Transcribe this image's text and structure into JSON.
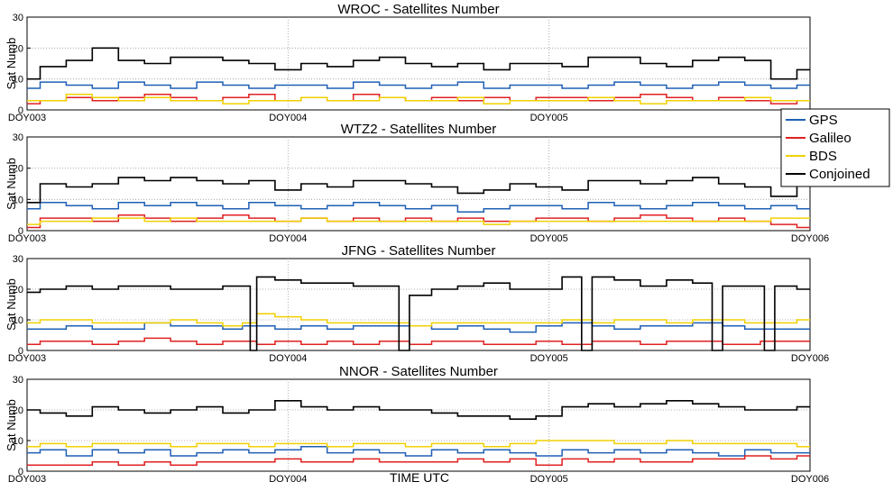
{
  "figure": {
    "xlabel": "TIME UTC",
    "legend": {
      "placement": "right",
      "entries": [
        {
          "name": "GPS",
          "color": "#1f5fb5"
        },
        {
          "name": "Galileo",
          "color": "#e02020"
        },
        {
          "name": "BDS",
          "color": "#f0d000"
        },
        {
          "name": "Conjoined",
          "color": "#000000"
        }
      ]
    }
  },
  "chart_data": [
    {
      "type": "line",
      "title": "WROC - Satellites Number",
      "ylabel": "Sat Numb",
      "xlabel": "",
      "x_ticks": [
        "DOY003",
        "DOY004",
        "DOY005"
      ],
      "xlim": [
        3,
        6
      ],
      "ylim": [
        0,
        30
      ],
      "yticks": [
        0,
        10,
        20,
        30
      ],
      "grid": true,
      "x": [
        3.0,
        3.1,
        3.2,
        3.3,
        3.4,
        3.5,
        3.6,
        3.7,
        3.8,
        3.9,
        4.0,
        4.1,
        4.2,
        4.3,
        4.4,
        4.5,
        4.6,
        4.7,
        4.8,
        4.9,
        5.0,
        5.1,
        5.2,
        5.3,
        5.4,
        5.5,
        5.6,
        5.7,
        5.8,
        5.9,
        6.0
      ],
      "series": [
        {
          "name": "GPS",
          "values": [
            7,
            9,
            8,
            7,
            9,
            8,
            7,
            9,
            8,
            7,
            8,
            8,
            7,
            9,
            8,
            7,
            8,
            9,
            7,
            8,
            8,
            7,
            8,
            9,
            8,
            7,
            8,
            9,
            8,
            7,
            8
          ]
        },
        {
          "name": "Galileo",
          "values": [
            2,
            3,
            4,
            3,
            4,
            5,
            4,
            3,
            4,
            5,
            3,
            4,
            3,
            5,
            4,
            3,
            4,
            3,
            4,
            3,
            4,
            4,
            3,
            4,
            5,
            4,
            3,
            4,
            3,
            2,
            3
          ]
        },
        {
          "name": "BDS",
          "values": [
            3,
            3,
            5,
            4,
            3,
            4,
            3,
            3,
            2,
            3,
            3,
            4,
            3,
            3,
            4,
            3,
            3,
            4,
            2,
            3,
            3,
            3,
            4,
            3,
            2,
            3,
            3,
            3,
            4,
            3,
            3
          ]
        },
        {
          "name": "Conjoined",
          "values": [
            10,
            14,
            16,
            20,
            16,
            15,
            17,
            17,
            16,
            15,
            13,
            15,
            14,
            16,
            17,
            15,
            14,
            15,
            13,
            15,
            15,
            14,
            17,
            17,
            15,
            14,
            16,
            17,
            16,
            10,
            13
          ]
        }
      ]
    },
    {
      "type": "line",
      "title": "WTZ2 - Satellites Number",
      "ylabel": "Sat Numb",
      "xlabel": "",
      "x_ticks": [
        "DOY003",
        "DOY004",
        "DOY005",
        "DOY006"
      ],
      "xlim": [
        3,
        6
      ],
      "ylim": [
        0,
        30
      ],
      "yticks": [
        0,
        10,
        20,
        30
      ],
      "grid": true,
      "x": [
        3.0,
        3.1,
        3.2,
        3.3,
        3.4,
        3.5,
        3.6,
        3.7,
        3.8,
        3.9,
        4.0,
        4.1,
        4.2,
        4.3,
        4.4,
        4.5,
        4.6,
        4.7,
        4.8,
        4.9,
        5.0,
        5.1,
        5.2,
        5.3,
        5.4,
        5.5,
        5.6,
        5.7,
        5.8,
        5.9,
        6.0
      ],
      "series": [
        {
          "name": "GPS",
          "values": [
            7,
            9,
            8,
            7,
            9,
            8,
            9,
            8,
            7,
            9,
            8,
            7,
            8,
            9,
            8,
            7,
            8,
            6,
            7,
            8,
            8,
            7,
            9,
            8,
            7,
            8,
            9,
            8,
            7,
            8,
            7
          ]
        },
        {
          "name": "Galileo",
          "values": [
            1,
            4,
            4,
            3,
            5,
            4,
            3,
            4,
            5,
            4,
            3,
            4,
            3,
            4,
            3,
            4,
            3,
            4,
            3,
            3,
            4,
            4,
            3,
            4,
            5,
            4,
            3,
            4,
            3,
            2,
            1
          ]
        },
        {
          "name": "BDS",
          "values": [
            2,
            3,
            3,
            4,
            4,
            3,
            4,
            3,
            3,
            3,
            3,
            4,
            3,
            3,
            3,
            3,
            3,
            3,
            2,
            3,
            3,
            3,
            3,
            3,
            3,
            3,
            3,
            3,
            3,
            4,
            4
          ]
        },
        {
          "name": "Conjoined",
          "values": [
            9,
            15,
            14,
            15,
            17,
            16,
            17,
            16,
            15,
            16,
            13,
            15,
            14,
            16,
            16,
            15,
            14,
            12,
            13,
            15,
            14,
            13,
            16,
            16,
            15,
            16,
            17,
            15,
            14,
            11,
            15
          ]
        }
      ]
    },
    {
      "type": "line",
      "title": "JFNG - Satellites Number",
      "ylabel": "Sat Numb",
      "xlabel": "",
      "x_ticks": [
        "DOY003",
        "DOY004",
        "DOY005",
        "DOY006"
      ],
      "xlim": [
        3,
        6
      ],
      "ylim": [
        0,
        30
      ],
      "yticks": [
        0,
        10,
        20,
        30
      ],
      "grid": true,
      "x": [
        3.0,
        3.1,
        3.2,
        3.3,
        3.4,
        3.5,
        3.6,
        3.7,
        3.8,
        3.85,
        3.86,
        3.9,
        4.0,
        4.1,
        4.2,
        4.3,
        4.4,
        4.42,
        4.43,
        4.5,
        4.6,
        4.7,
        4.8,
        4.9,
        5.0,
        5.1,
        5.12,
        5.13,
        5.2,
        5.3,
        5.4,
        5.5,
        5.6,
        5.62,
        5.63,
        5.7,
        5.8,
        5.82,
        5.83,
        5.9,
        6.0
      ],
      "series": [
        {
          "name": "GPS",
          "values": [
            7,
            7,
            8,
            7,
            7,
            9,
            8,
            8,
            7,
            8,
            8,
            8,
            7,
            8,
            7,
            8,
            8,
            8,
            8,
            8,
            7,
            8,
            7,
            6,
            8,
            9,
            9,
            9,
            8,
            7,
            8,
            8,
            9,
            9,
            9,
            8,
            7,
            7,
            7,
            7,
            7
          ]
        },
        {
          "name": "Galileo",
          "values": [
            2,
            3,
            3,
            2,
            3,
            4,
            3,
            2,
            3,
            3,
            3,
            2,
            3,
            2,
            3,
            2,
            3,
            3,
            3,
            2,
            3,
            3,
            2,
            2,
            3,
            2,
            2,
            2,
            3,
            3,
            2,
            3,
            3,
            3,
            3,
            2,
            2,
            3,
            3,
            3,
            3
          ]
        },
        {
          "name": "BDS",
          "values": [
            9,
            10,
            10,
            9,
            9,
            9,
            10,
            9,
            8,
            9,
            9,
            12,
            11,
            10,
            9,
            9,
            9,
            9,
            9,
            8,
            9,
            9,
            9,
            9,
            9,
            10,
            10,
            10,
            9,
            10,
            10,
            9,
            10,
            10,
            10,
            10,
            9,
            9,
            9,
            9,
            10
          ]
        },
        {
          "name": "Conjoined",
          "values": [
            19,
            20,
            21,
            20,
            21,
            21,
            20,
            20,
            21,
            21,
            0,
            24,
            23,
            22,
            22,
            21,
            21,
            21,
            0,
            18,
            20,
            21,
            22,
            20,
            20,
            24,
            24,
            0,
            24,
            23,
            21,
            23,
            22,
            22,
            0,
            21,
            21,
            21,
            0,
            21,
            20
          ]
        }
      ]
    },
    {
      "type": "line",
      "title": "NNOR - Satellites Number",
      "ylabel": "Sat Numb",
      "xlabel": "TIME UTC",
      "x_ticks": [
        "DOY003",
        "DOY004",
        "DOY005",
        "DOY006"
      ],
      "xlim": [
        3,
        6
      ],
      "ylim": [
        0,
        30
      ],
      "yticks": [
        0,
        10,
        20,
        30
      ],
      "grid": true,
      "x": [
        3.0,
        3.1,
        3.2,
        3.3,
        3.4,
        3.5,
        3.6,
        3.7,
        3.8,
        3.9,
        4.0,
        4.1,
        4.2,
        4.3,
        4.4,
        4.5,
        4.6,
        4.7,
        4.8,
        4.9,
        5.0,
        5.1,
        5.2,
        5.3,
        5.4,
        5.5,
        5.6,
        5.7,
        5.8,
        5.9,
        6.0
      ],
      "series": [
        {
          "name": "GPS",
          "values": [
            6,
            7,
            5,
            7,
            6,
            7,
            5,
            6,
            7,
            6,
            7,
            8,
            6,
            7,
            6,
            5,
            7,
            6,
            7,
            6,
            5,
            7,
            6,
            7,
            6,
            7,
            6,
            5,
            7,
            6,
            6
          ]
        },
        {
          "name": "Galileo",
          "values": [
            2,
            2,
            2,
            3,
            2,
            3,
            2,
            3,
            3,
            3,
            4,
            3,
            3,
            4,
            3,
            3,
            3,
            4,
            3,
            4,
            2,
            4,
            3,
            4,
            3,
            3,
            4,
            4,
            5,
            4,
            5
          ]
        },
        {
          "name": "BDS",
          "values": [
            8,
            9,
            8,
            9,
            9,
            9,
            8,
            9,
            9,
            8,
            9,
            9,
            8,
            9,
            9,
            8,
            9,
            9,
            8,
            9,
            10,
            10,
            10,
            9,
            9,
            10,
            9,
            9,
            9,
            9,
            8
          ]
        },
        {
          "name": "Conjoined",
          "values": [
            20,
            19,
            18,
            21,
            20,
            19,
            20,
            21,
            19,
            20,
            23,
            21,
            20,
            21,
            20,
            20,
            19,
            18,
            18,
            17,
            18,
            21,
            22,
            21,
            22,
            23,
            22,
            21,
            20,
            20,
            21
          ]
        }
      ]
    }
  ]
}
